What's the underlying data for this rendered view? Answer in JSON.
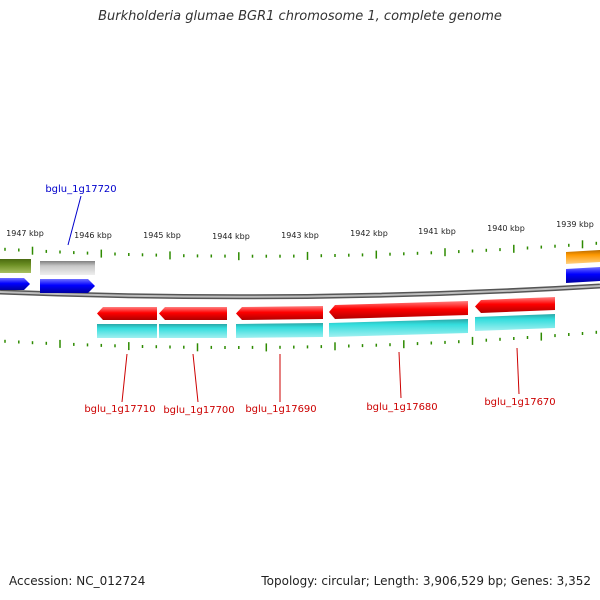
{
  "title": "Burkholderia glumae BGR1 chromosome 1, complete genome",
  "accession": "Accession: NC_012724",
  "stats": "Topology: circular; Length: 3,906,529 bp; Genes: 3,352",
  "colors": {
    "tick": "#2e8b00",
    "backbone": "#808080",
    "forward_label": "#0000cc",
    "reverse_label": "#cc0000",
    "forward_cds": "#0000ff",
    "reverse_cds": "#ff0000",
    "rna_teal": "#22cccc",
    "gene_olive": "#6b8e23",
    "gene_gray": "#c0c0c0",
    "gene_orange": "#ff9900"
  },
  "scale": {
    "kbp_labels": [
      "1947 kbp",
      "1946 kbp",
      "1945 kbp",
      "1944 kbp",
      "1943 kbp",
      "1942 kbp",
      "1941 kbp",
      "1940 kbp",
      "1939 kbp"
    ]
  },
  "gene_labels": {
    "forward": [
      "bglu_1g17720"
    ],
    "reverse": [
      "bglu_1g17710",
      "bglu_1g17700",
      "bglu_1g17690",
      "bglu_1g17680",
      "bglu_1g17670"
    ]
  }
}
